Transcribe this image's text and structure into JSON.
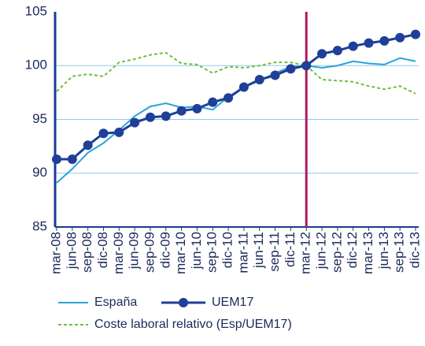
{
  "chart_data": {
    "type": "line",
    "categories": [
      "mar-08",
      "jun-08",
      "sep-08",
      "dic-08",
      "mar-09",
      "jun-09",
      "sep-09",
      "dic-09",
      "mar-10",
      "jun-10",
      "sep-10",
      "dic-10",
      "mar-11",
      "jun-11",
      "sep-11",
      "dic-11",
      "mar-12",
      "jun-12",
      "sep-12",
      "dic-12",
      "mar-13",
      "jun-13",
      "sep-13",
      "dic-13"
    ],
    "series": [
      {
        "name": "España",
        "color": "#2ba3db",
        "style": "solid",
        "marker": false,
        "values": [
          89.1,
          90.4,
          91.9,
          92.8,
          94.0,
          95.3,
          96.2,
          96.5,
          96.1,
          96.2,
          95.9,
          97.1,
          98.0,
          98.6,
          99.3,
          99.9,
          100.0,
          99.8,
          100.0,
          100.4,
          100.2,
          100.1,
          100.7,
          100.4
        ]
      },
      {
        "name": "UEM17",
        "color": "#1f3f99",
        "style": "solid",
        "marker": true,
        "values": [
          91.3,
          91.3,
          92.6,
          93.7,
          93.8,
          94.7,
          95.2,
          95.3,
          95.8,
          96.0,
          96.6,
          97.0,
          98.0,
          98.7,
          99.1,
          99.7,
          100.0,
          101.1,
          101.4,
          101.8,
          102.1,
          102.3,
          102.6,
          102.9
        ]
      },
      {
        "name": "Coste laboral relativo (Esp/UEM17)",
        "color": "#6dbf3e",
        "style": "dashed",
        "marker": false,
        "values": [
          97.6,
          99.0,
          99.2,
          99.0,
          100.3,
          100.6,
          101.0,
          101.2,
          100.2,
          100.1,
          99.3,
          99.9,
          99.8,
          100.0,
          100.3,
          100.3,
          100.0,
          98.7,
          98.6,
          98.5,
          98.1,
          97.8,
          98.1,
          97.4
        ]
      }
    ],
    "ylim": [
      85,
      105
    ],
    "yticks": [
      85,
      90,
      95,
      100,
      105
    ],
    "grid": true,
    "vline": "mar-12",
    "vline_color": "#b0175e",
    "axis_color": "#1a3c8f"
  }
}
